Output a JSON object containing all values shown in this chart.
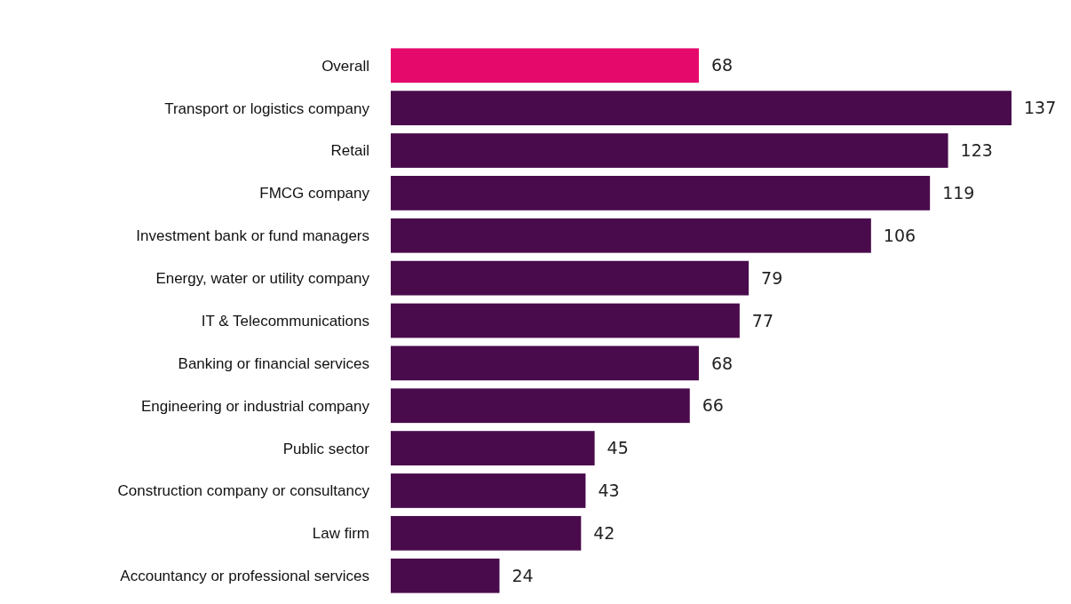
{
  "chart_data": {
    "type": "bar",
    "orientation": "horizontal",
    "categories": [
      "Overall",
      "Transport or logistics company",
      "Retail",
      "FMCG company",
      "Investment bank or fund managers",
      "Energy, water or utility company",
      "IT & Telecommunications",
      "Banking or financial services",
      "Engineering or industrial company",
      "Public sector",
      "Construction company or consultancy",
      "Law firm",
      "Accountancy or professional services"
    ],
    "values": [
      68,
      137,
      123,
      119,
      106,
      79,
      77,
      68,
      66,
      45,
      43,
      42,
      24
    ],
    "colors": [
      "#e5096b",
      "#4a0b4c",
      "#4a0b4c",
      "#4a0b4c",
      "#4a0b4c",
      "#4a0b4c",
      "#4a0b4c",
      "#4a0b4c",
      "#4a0b4c",
      "#4a0b4c",
      "#4a0b4c",
      "#4a0b4c",
      "#4a0b4c"
    ],
    "data_labels": true
  }
}
